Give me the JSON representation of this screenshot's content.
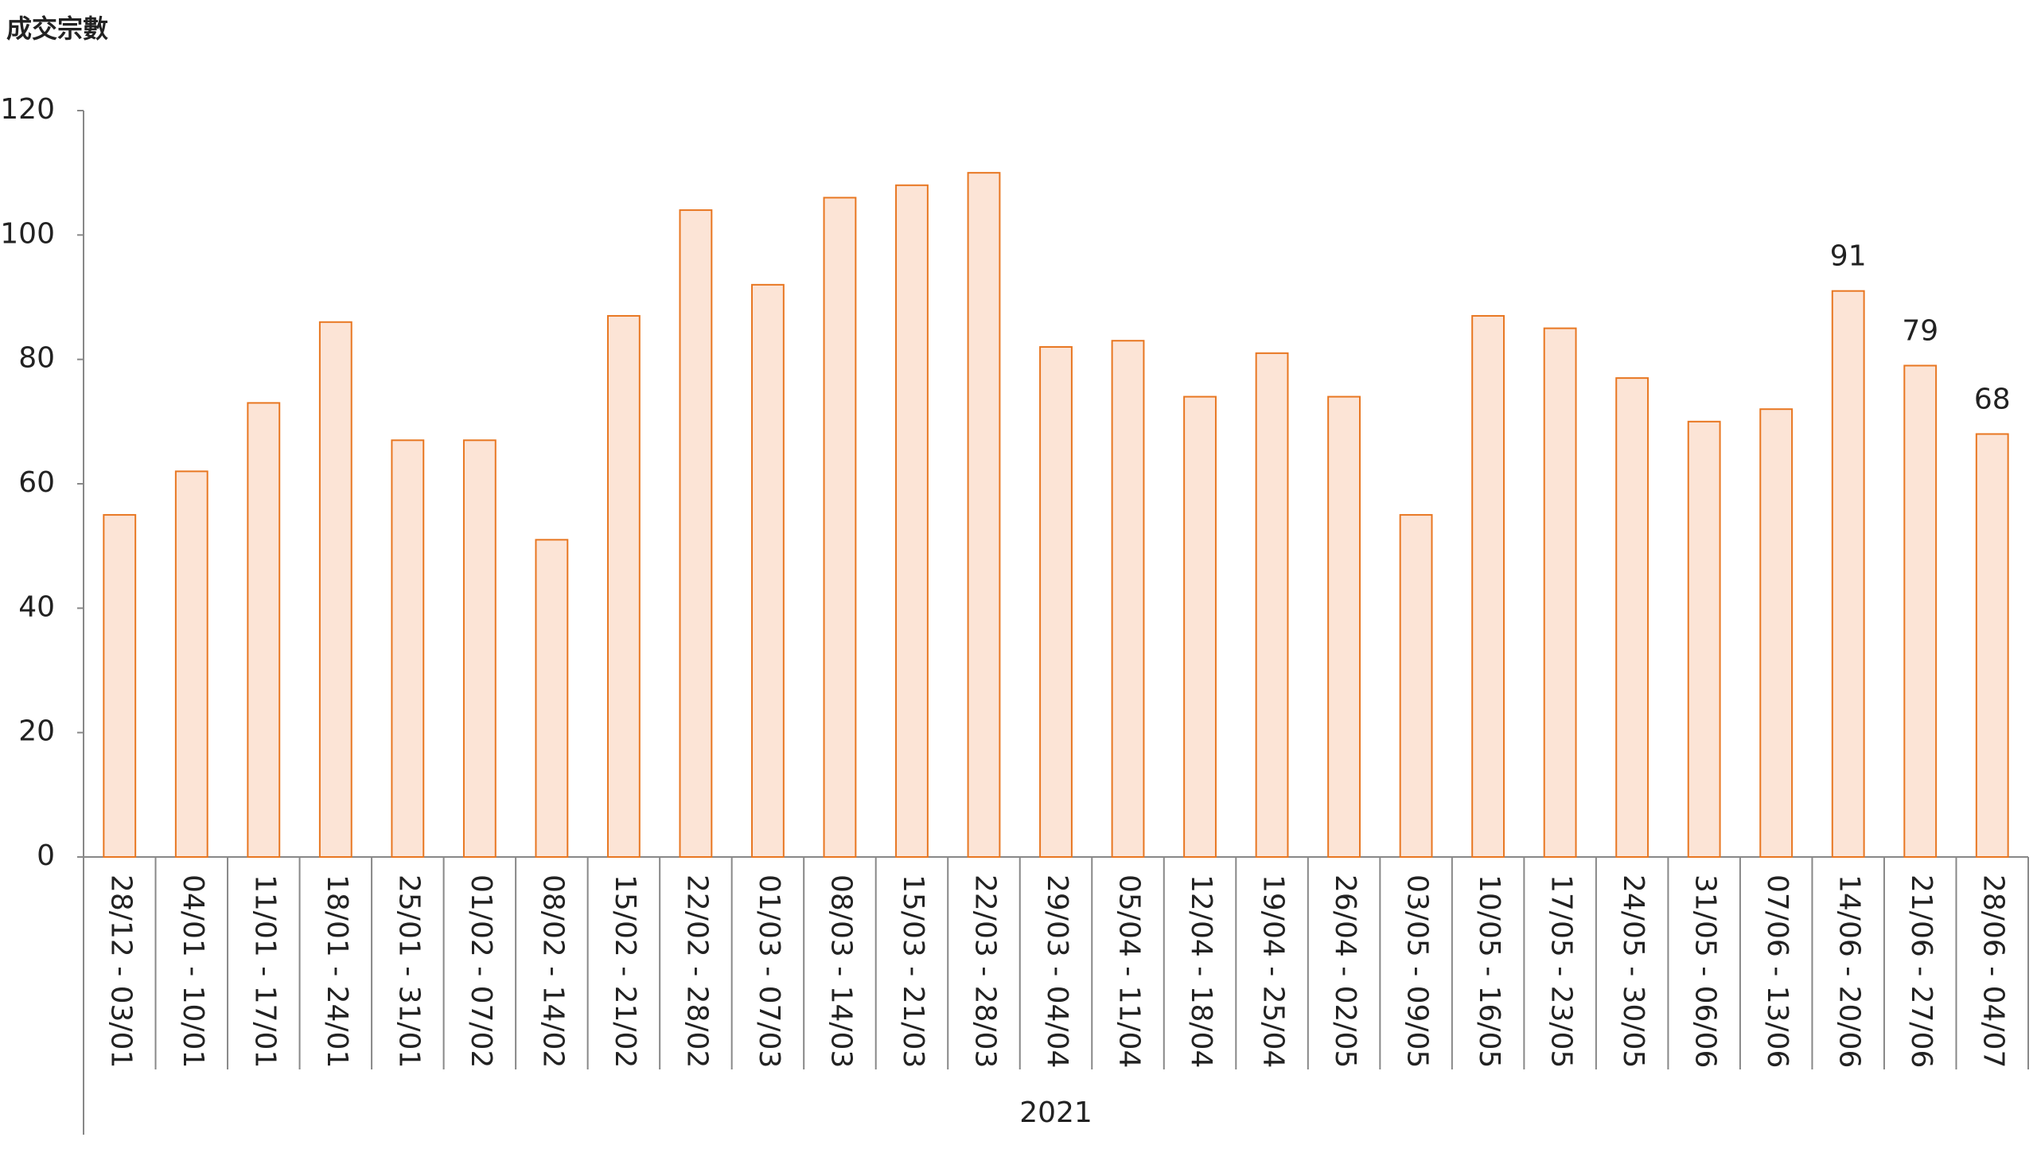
{
  "chart_data": {
    "type": "bar",
    "y_axis_title": "成交宗數",
    "group_label": "2021",
    "categories": [
      "28/12 - 03/01",
      "04/01 - 10/01",
      "11/01 - 17/01",
      "18/01 - 24/01",
      "25/01 - 31/01",
      "01/02 - 07/02",
      "08/02 - 14/02",
      "15/02 - 21/02",
      "22/02 - 28/02",
      "01/03 - 07/03",
      "08/03 - 14/03",
      "15/03 - 21/03",
      "22/03 - 28/03",
      "29/03 - 04/04",
      "05/04 - 11/04",
      "12/04 - 18/04",
      "19/04 - 25/04",
      "26/04 - 02/05",
      "03/05 - 09/05",
      "10/05 - 16/05",
      "17/05 - 23/05",
      "24/05 - 30/05",
      "31/05 - 06/06",
      "07/06 - 13/06",
      "14/06 - 20/06",
      "21/06 - 27/06",
      "28/06 - 04/07"
    ],
    "values": [
      55,
      62,
      73,
      86,
      67,
      67,
      51,
      87,
      104,
      92,
      106,
      108,
      110,
      82,
      83,
      74,
      81,
      74,
      55,
      87,
      85,
      77,
      70,
      72,
      91,
      79,
      68
    ],
    "value_labels": [
      null,
      null,
      null,
      null,
      null,
      null,
      null,
      null,
      null,
      null,
      null,
      null,
      null,
      null,
      null,
      null,
      null,
      null,
      null,
      null,
      null,
      null,
      null,
      null,
      "91",
      "79",
      "68"
    ],
    "color": "#fce4d6",
    "edge_color": "#e87722",
    "ylim": [
      0,
      120
    ],
    "yticks": [
      0,
      20,
      40,
      60,
      80,
      100,
      120
    ],
    "grid": false
  }
}
